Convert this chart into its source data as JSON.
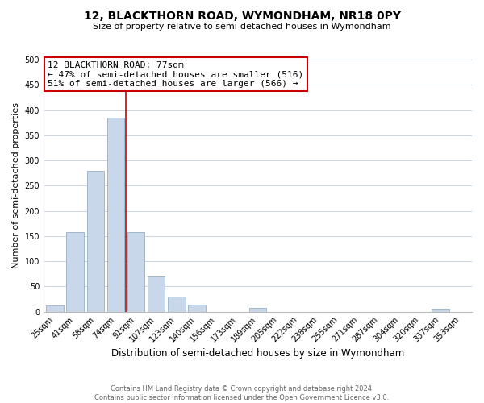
{
  "title": "12, BLACKTHORN ROAD, WYMONDHAM, NR18 0PY",
  "subtitle": "Size of property relative to semi-detached houses in Wymondham",
  "xlabel": "Distribution of semi-detached houses by size in Wymondham",
  "ylabel": "Number of semi-detached properties",
  "bar_labels": [
    "25sqm",
    "41sqm",
    "58sqm",
    "74sqm",
    "91sqm",
    "107sqm",
    "123sqm",
    "140sqm",
    "156sqm",
    "173sqm",
    "189sqm",
    "205sqm",
    "222sqm",
    "238sqm",
    "255sqm",
    "271sqm",
    "287sqm",
    "304sqm",
    "320sqm",
    "337sqm",
    "353sqm"
  ],
  "bar_values": [
    12,
    157,
    280,
    385,
    157,
    70,
    29,
    14,
    0,
    0,
    7,
    0,
    0,
    0,
    0,
    0,
    0,
    0,
    0,
    5,
    0
  ],
  "bar_color": "#c8d8ea",
  "bar_edge_color": "#a0b8cc",
  "property_line_x": 3.5,
  "ylim": [
    0,
    500
  ],
  "yticks": [
    0,
    50,
    100,
    150,
    200,
    250,
    300,
    350,
    400,
    450,
    500
  ],
  "annotation_line1": "12 BLACKTHORN ROAD: 77sqm",
  "annotation_line2": "← 47% of semi-detached houses are smaller (516)",
  "annotation_line3": "51% of semi-detached houses are larger (566) →",
  "footer_line1": "Contains HM Land Registry data © Crown copyright and database right 2024.",
  "footer_line2": "Contains public sector information licensed under the Open Government Licence v3.0.",
  "background_color": "#ffffff",
  "grid_color": "#c8d4e0",
  "annotation_box_edge": "#cc0000",
  "property_line_color": "#cc0000",
  "title_fontsize": 10,
  "subtitle_fontsize": 8,
  "ylabel_fontsize": 8,
  "xlabel_fontsize": 8.5,
  "tick_fontsize": 7,
  "annot_fontsize": 8,
  "footer_fontsize": 6
}
